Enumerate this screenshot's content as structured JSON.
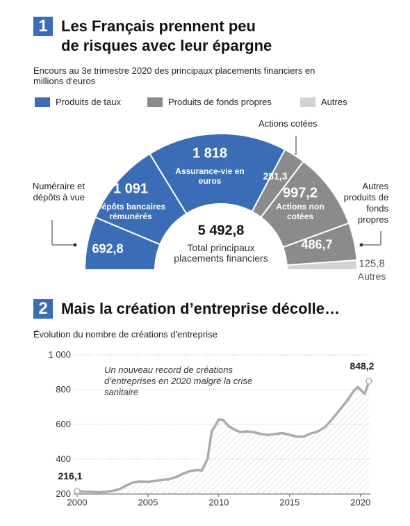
{
  "chart_data": [
    {
      "type": "half-donut",
      "number": "1",
      "title": "Les Français prennent peu de risques avec leur épargne",
      "subtitle": "Encours au 3e trimestre 2020 des principaux placements financiers en millions d'euros",
      "legend": [
        {
          "name": "Produits de taux",
          "color": "#3b6cb6"
        },
        {
          "name": "Produits de fonds propres",
          "color": "#8b8b8b"
        },
        {
          "name": "Autres",
          "color": "#d3d3d3"
        }
      ],
      "categories": [
        "Numéraire et dépôts à vue",
        "Dépôts bancaires rémunérés",
        "Assurance-vie en euros",
        "Actions cotées",
        "Actions non cotées",
        "Autres produits de fonds propres",
        "Autres"
      ],
      "values": [
        692.8,
        1091,
        1818,
        281.3,
        997.2,
        486.7,
        125.8
      ],
      "value_labels": [
        "692,8",
        "1 091",
        "1 818",
        "281,3",
        "997,2",
        "486,7",
        "125,8"
      ],
      "colors": [
        "#3b6cb6",
        "#3b6cb6",
        "#3b6cb6",
        "#8b8b8b",
        "#8b8b8b",
        "#8b8b8b",
        "#d3d3d3"
      ],
      "total": 5492.8,
      "total_label": "5 492,8",
      "total_text": "Total principaux placements financiers"
    },
    {
      "type": "line",
      "number": "2",
      "title": "Mais la création d’entreprise décolle…",
      "subtitle": "Évolution du nombre de créations d'entreprise",
      "annotation": "Un nouveau record de créations d’entreprises en 2020 malgré la crise sanitaire",
      "x": [
        2000,
        2000.5,
        2001,
        2001.5,
        2002,
        2002.5,
        2003,
        2003.5,
        2004,
        2004.5,
        2005,
        2005.5,
        2006,
        2006.5,
        2007,
        2007.5,
        2008,
        2008.5,
        2008.8,
        2009.2,
        2009.5,
        2010,
        2010.3,
        2010.7,
        2011,
        2011.5,
        2012,
        2012.5,
        2013,
        2013.5,
        2014,
        2014.5,
        2015,
        2015.5,
        2016,
        2016.5,
        2017,
        2017.5,
        2018,
        2018.5,
        2019,
        2019.5,
        2019.8,
        2020,
        2020.3,
        2020.6
      ],
      "values": [
        216.1,
        213,
        212,
        210,
        212,
        218,
        228,
        250,
        268,
        272,
        270,
        275,
        282,
        285,
        298,
        318,
        332,
        338,
        335,
        400,
        560,
        628,
        626,
        590,
        575,
        556,
        560,
        555,
        545,
        540,
        545,
        550,
        540,
        530,
        530,
        548,
        560,
        585,
        630,
        680,
        730,
        790,
        815,
        800,
        775,
        848.2
      ],
      "value_labels": [
        "216,1",
        null,
        null,
        null,
        null,
        null,
        null,
        null,
        null,
        null,
        null,
        null,
        null,
        null,
        null,
        null,
        null,
        null,
        null,
        null,
        null,
        null,
        null,
        null,
        null,
        null,
        null,
        null,
        null,
        null,
        null,
        null,
        null,
        null,
        null,
        null,
        null,
        null,
        null,
        null,
        null,
        null,
        null,
        null,
        null,
        "848,2"
      ],
      "color": "#ababab",
      "xlim": [
        2000,
        2020.7
      ],
      "xticks": [
        2000,
        2005,
        2010,
        2015,
        2020
      ],
      "ylim": [
        200,
        1000
      ],
      "yticks": [
        200,
        400,
        600,
        800,
        {
          "value": 1000,
          "label": "1 000"
        }
      ],
      "grid": true
    }
  ]
}
